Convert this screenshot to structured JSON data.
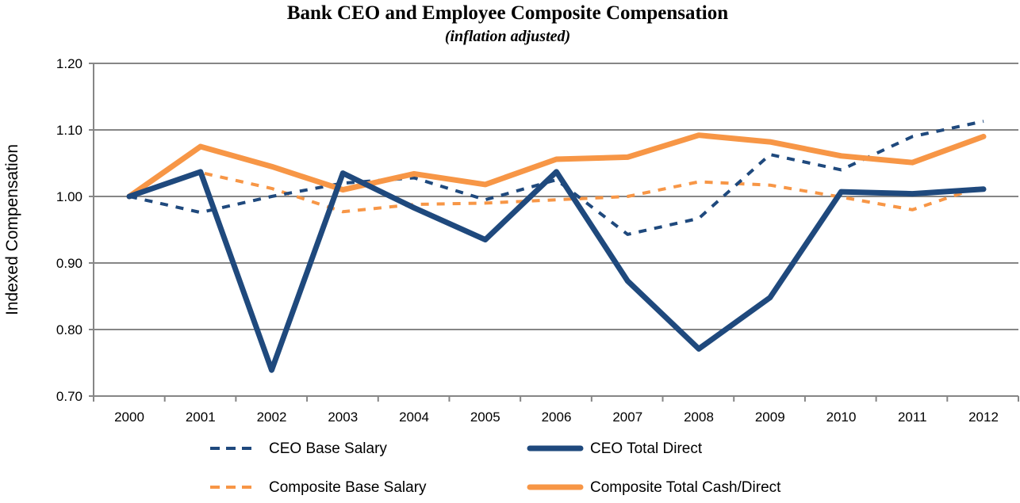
{
  "chart_data": {
    "type": "line",
    "title": "Bank CEO and Employee Composite Compensation",
    "subtitle": "(inflation adjusted)",
    "xlabel": "",
    "ylabel": "Indexed Compensation",
    "ylim": [
      0.7,
      1.2
    ],
    "yticks": [
      "0.70",
      "0.80",
      "0.90",
      "1.00",
      "1.10",
      "1.20"
    ],
    "grid": true,
    "legend_position": "bottom",
    "x": [
      "2000",
      "2001",
      "2002",
      "2003",
      "2004",
      "2005",
      "2006",
      "2007",
      "2008",
      "2009",
      "2010",
      "2011",
      "2012"
    ],
    "series": [
      {
        "name": "CEO Base Salary",
        "color": "#1f497d",
        "style": "dashed",
        "values": [
          1.0,
          0.976,
          1.0,
          1.02,
          1.028,
          0.995,
          1.025,
          0.943,
          0.967,
          1.063,
          1.04,
          1.09,
          1.113
        ]
      },
      {
        "name": "CEO Total Direct",
        "color": "#1f497d",
        "style": "solid",
        "values": [
          1.0,
          1.037,
          0.739,
          1.035,
          0.983,
          0.935,
          1.037,
          0.873,
          0.771,
          0.848,
          1.007,
          1.004,
          1.011
        ]
      },
      {
        "name": "Composite Base Salary",
        "color": "#f79646",
        "style": "dashed",
        "values": [
          1.0,
          1.036,
          1.012,
          0.977,
          0.988,
          0.99,
          0.995,
          1.0,
          1.022,
          1.017,
          0.999,
          0.98,
          1.016
        ]
      },
      {
        "name": "Composite Total Cash/Direct",
        "color": "#f79646",
        "style": "solid",
        "values": [
          1.0,
          1.075,
          1.045,
          1.01,
          1.034,
          1.018,
          1.056,
          1.059,
          1.092,
          1.082,
          1.061,
          1.051,
          1.09
        ]
      }
    ]
  }
}
